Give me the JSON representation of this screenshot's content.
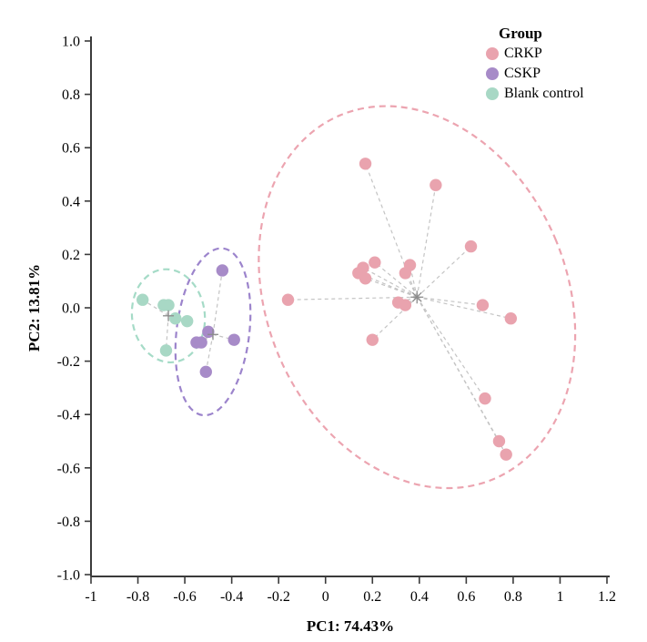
{
  "chart_data": {
    "type": "scatter",
    "title": "",
    "xlabel": "PC1: 74.43%",
    "ylabel": "PC2: 13.81%",
    "legend_title": "Group",
    "legend_position": "top-right",
    "grid": false,
    "xlim": [
      -1,
      1.2
    ],
    "ylim": [
      -1,
      1
    ],
    "x_tick_values": [
      -1,
      -0.8,
      -0.6,
      -0.4,
      -0.2,
      0,
      0.2,
      0.4,
      0.6,
      0.8,
      1,
      1.2
    ],
    "x_tick_labels": [
      "-1",
      "-0.8",
      "-0.6",
      "-0.4",
      "-0.2",
      "0",
      "0.2",
      "0.4",
      "0.6",
      "0.8",
      "1",
      "1.2"
    ],
    "y_tick_values": [
      1.0,
      0.8,
      0.6,
      0.4,
      0.2,
      0.0,
      -0.2,
      -0.4,
      -0.6,
      -0.8,
      -1.0
    ],
    "y_tick_labels": [
      "1.0",
      "0.8",
      "0.6",
      "0.4",
      "0.2",
      "0.0",
      "-0.2",
      "-0.4",
      "-0.6",
      "-0.8",
      "-1.0"
    ],
    "axis_color": "#3B3B3B",
    "spoke_color": "#C4C4C4",
    "centroid_marker_color": "#8C8C8C",
    "series": [
      {
        "name": "CRKP",
        "color": "#E9A3AE",
        "ellipse_color": "#ECA4B0",
        "centroid": [
          0.39,
          0.04
        ],
        "centroid_marker": "asterisk",
        "ellipse": {
          "cx": 0.39,
          "cy": 0.04,
          "rx": 0.64,
          "ry": 0.74,
          "angle": -23
        },
        "points": [
          [
            0.17,
            0.54
          ],
          [
            0.47,
            0.46
          ],
          [
            0.62,
            0.23
          ],
          [
            0.16,
            0.15
          ],
          [
            0.21,
            0.17
          ],
          [
            0.14,
            0.13
          ],
          [
            0.17,
            0.11
          ],
          [
            0.34,
            0.13
          ],
          [
            0.36,
            0.16
          ],
          [
            -0.16,
            0.03
          ],
          [
            0.31,
            0.02
          ],
          [
            0.34,
            0.01
          ],
          [
            0.67,
            0.01
          ],
          [
            0.79,
            -0.04
          ],
          [
            0.2,
            -0.12
          ],
          [
            0.68,
            -0.34
          ],
          [
            0.74,
            -0.5
          ],
          [
            0.77,
            -0.55
          ]
        ]
      },
      {
        "name": "CSKP",
        "color": "#A78BC8",
        "ellipse_color": "#9C84CC",
        "centroid": [
          -0.48,
          -0.1
        ],
        "centroid_marker": "plus",
        "ellipse": {
          "cx": -0.48,
          "cy": -0.09,
          "rx": 0.155,
          "ry": 0.315,
          "angle": 7
        },
        "points": [
          [
            -0.44,
            0.14
          ],
          [
            -0.5,
            -0.09
          ],
          [
            -0.55,
            -0.13
          ],
          [
            -0.53,
            -0.13
          ],
          [
            -0.39,
            -0.12
          ],
          [
            -0.51,
            -0.24
          ]
        ]
      },
      {
        "name": "Blank control",
        "color": "#A8D8C5",
        "ellipse_color": "#A5DBC7",
        "centroid": [
          -0.67,
          -0.03
        ],
        "centroid_marker": "plus",
        "ellipse": {
          "cx": -0.67,
          "cy": -0.03,
          "rx": 0.155,
          "ry": 0.175,
          "angle": -7
        },
        "points": [
          [
            -0.78,
            0.03
          ],
          [
            -0.69,
            0.01
          ],
          [
            -0.67,
            0.01
          ],
          [
            -0.64,
            -0.04
          ],
          [
            -0.59,
            -0.05
          ],
          [
            -0.68,
            -0.16
          ]
        ]
      }
    ]
  }
}
